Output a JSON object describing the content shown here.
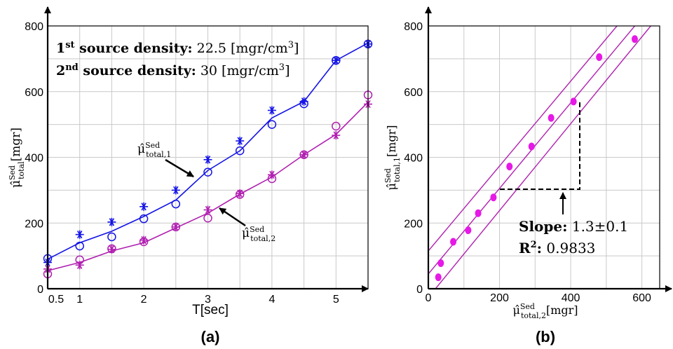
{
  "chart_data": [
    {
      "type": "line",
      "panel_label": "(a)",
      "xlabel": "T[sec]",
      "ylabel": {
        "base": "μ̂",
        "sup": "Sed",
        "sub": "total",
        "unit": "[mgr]"
      },
      "xlim": [
        0.5,
        5.5
      ],
      "ylim": [
        0,
        800
      ],
      "xticks": [
        0.5,
        1,
        2,
        3,
        4,
        5
      ],
      "yticks": [
        0,
        200,
        400,
        600,
        800
      ],
      "grid": true,
      "annotations": {
        "line1": {
          "ord": "1",
          "ordsup": "st",
          "label": " source density:",
          "value": " 22.5 [mgr/cm",
          "valuesup": "3",
          "close": "]"
        },
        "line2": {
          "ord": "2",
          "ordsup": "nd",
          "label": " source density:",
          "value": " 30 [mgr/cm",
          "valuesup": "3",
          "close": "]"
        },
        "series1_label": {
          "base": "μ̂",
          "sup": "Sed",
          "sub": "total,1"
        },
        "series2_label": {
          "base": "μ̂",
          "sup": "Sed",
          "sub": "total,2"
        }
      },
      "series": [
        {
          "key": "total1",
          "color": "#1414e6",
          "x": [
            0.5,
            1,
            1.5,
            2,
            2.5,
            3,
            3.5,
            4,
            4.5,
            5,
            5.5
          ],
          "circles": [
            92,
            130,
            158,
            213,
            258,
            355,
            420,
            500,
            563,
            695,
            745
          ],
          "stars": [
            80,
            165,
            203,
            250,
            300,
            393,
            450,
            543,
            570,
            695,
            745
          ],
          "fit": [
            90,
            140,
            175,
            220,
            270,
            360,
            420,
            520,
            570,
            695,
            748
          ]
        },
        {
          "key": "total2",
          "color": "#b020b0",
          "x": [
            0.5,
            1,
            1.5,
            2,
            2.5,
            3,
            3.5,
            4,
            4.5,
            5,
            5.5
          ],
          "circles": [
            45,
            88,
            122,
            143,
            188,
            215,
            287,
            335,
            408,
            495,
            590
          ],
          "stars": [
            60,
            72,
            120,
            148,
            188,
            240,
            290,
            347,
            408,
            467,
            562
          ],
          "fit": [
            55,
            80,
            115,
            140,
            185,
            230,
            288,
            340,
            408,
            470,
            568
          ]
        }
      ]
    },
    {
      "type": "scatter",
      "panel_label": "(b)",
      "xlabel": {
        "base": "μ̂",
        "sup": "Sed",
        "sub": "total,2",
        "unit": "[mgr]"
      },
      "ylabel": {
        "base": "μ̂",
        "sup": "Sed",
        "sub": "total,1",
        "unit": "[mgr]"
      },
      "xlim": [
        0,
        650
      ],
      "ylim": [
        0,
        800
      ],
      "xticks": [
        0,
        200,
        400,
        600
      ],
      "yticks": [
        0,
        200,
        400,
        600,
        800
      ],
      "grid": true,
      "color": "#e619e6",
      "line_color": "#b020b0",
      "points": [
        {
          "x": 28,
          "y": 35
        },
        {
          "x": 35,
          "y": 78
        },
        {
          "x": 70,
          "y": 143
        },
        {
          "x": 112,
          "y": 178
        },
        {
          "x": 140,
          "y": 230
        },
        {
          "x": 183,
          "y": 278
        },
        {
          "x": 228,
          "y": 372
        },
        {
          "x": 290,
          "y": 433
        },
        {
          "x": 345,
          "y": 520
        },
        {
          "x": 408,
          "y": 570
        },
        {
          "x": 480,
          "y": 705
        },
        {
          "x": 580,
          "y": 760
        }
      ],
      "fit_lines": [
        {
          "x": [
            0,
            530
          ],
          "y": [
            115,
            800
          ]
        },
        {
          "x": 0,
          "y": 45,
          "x2": 580,
          "y2": 800
        },
        {
          "x": 20,
          "y": 0,
          "x2": 625,
          "y2": 800
        }
      ],
      "annotation": {
        "slope_label": "Slope:",
        "slope_value": " 1.3±0.1",
        "r2_label": "R",
        "r2_sup": "2",
        "r2_colon": ":",
        "r2_value": " 0.9833"
      }
    }
  ]
}
